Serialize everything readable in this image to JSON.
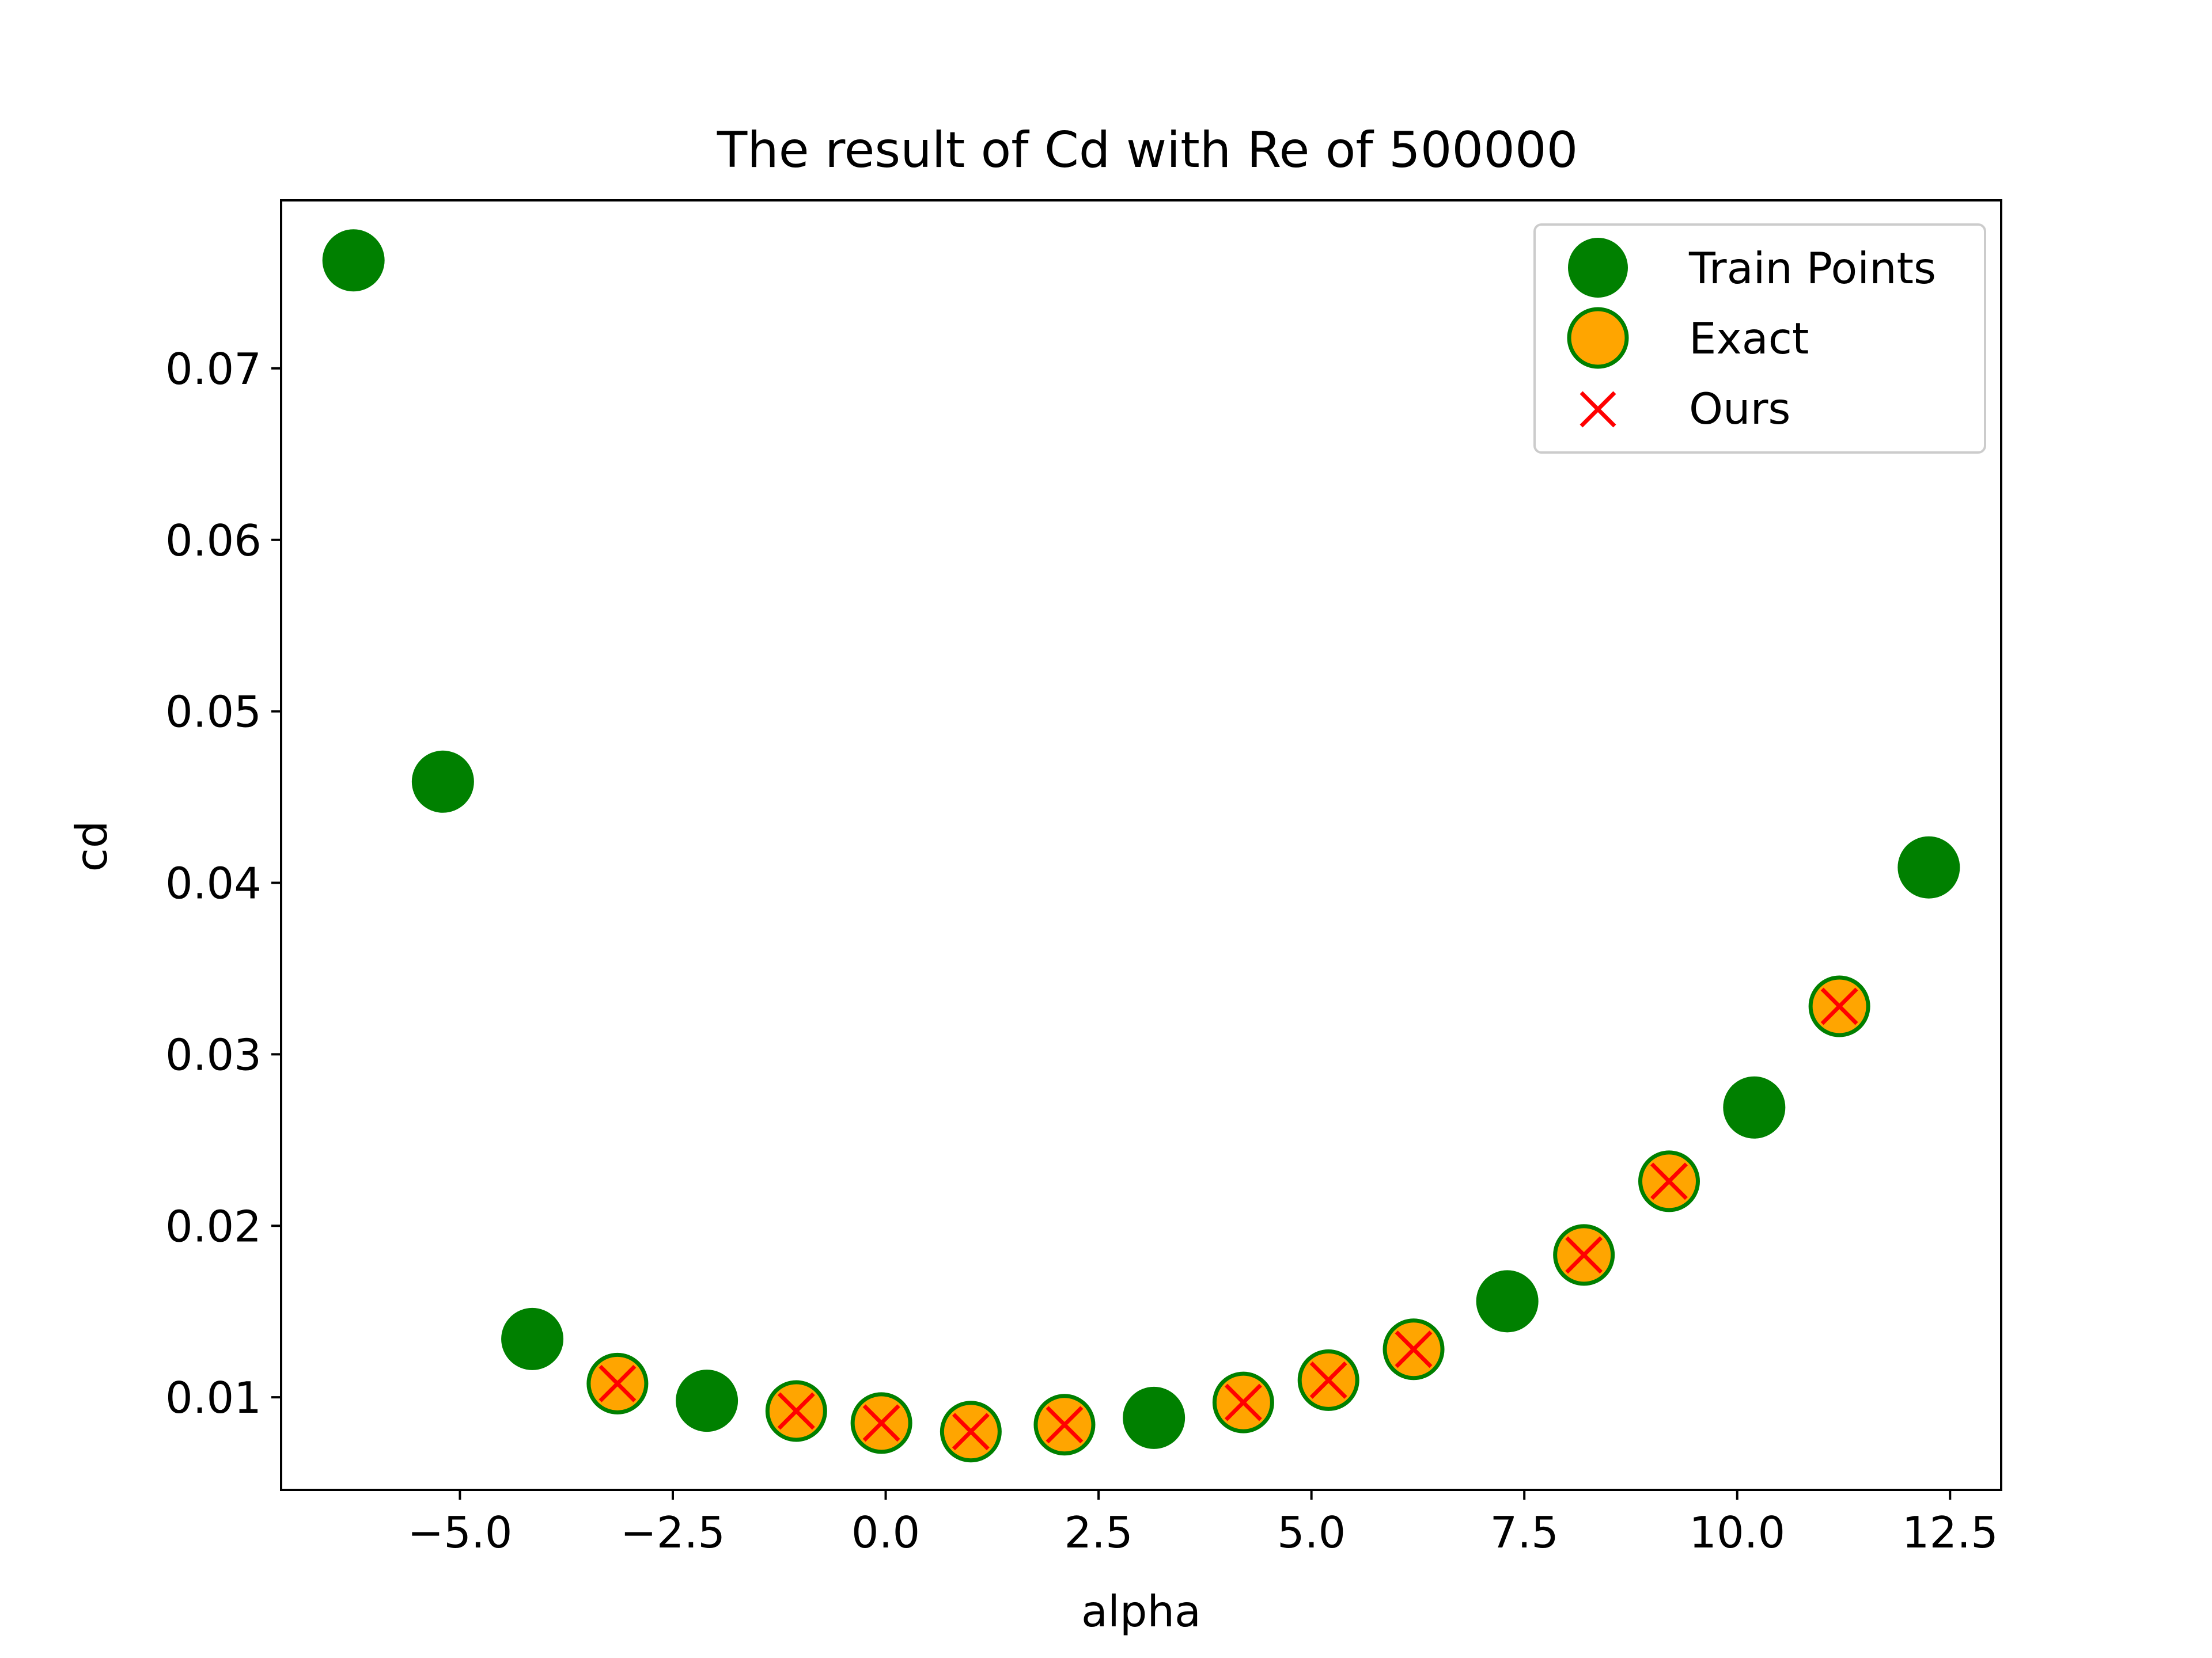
{
  "chart_data": {
    "type": "scatter",
    "title": "The result of Cd with Re of 500000",
    "xlabel": "alpha",
    "ylabel": "cd",
    "xlim": [
      -7.1,
      13.1
    ],
    "ylim": [
      0.0046,
      0.0798
    ],
    "xticks": [
      -5.0,
      -2.5,
      0.0,
      2.5,
      5.0,
      7.5,
      10.0,
      12.5
    ],
    "xtick_labels": [
      "−5.0",
      "−2.5",
      "0.0",
      "2.5",
      "5.0",
      "7.5",
      "10.0",
      "12.5"
    ],
    "yticks": [
      0.01,
      0.02,
      0.03,
      0.04,
      0.05,
      0.06,
      0.07
    ],
    "ytick_labels": [
      "0.01",
      "0.02",
      "0.03",
      "0.04",
      "0.05",
      "0.06",
      "0.07"
    ],
    "grid": false,
    "legend_position": "top-right",
    "series": [
      {
        "name": "Train Points",
        "marker": "circle",
        "color": "#008000",
        "x": [
          -6.25,
          -5.2,
          -4.15,
          -2.1,
          3.15,
          7.3,
          10.2,
          12.25
        ],
        "y": [
          0.0763,
          0.0459,
          0.0134,
          0.0098,
          0.0088,
          0.0156,
          0.0269,
          0.0409
        ]
      },
      {
        "name": "Exact",
        "marker": "circle",
        "color": "#ffa500",
        "edge_color": "#008000",
        "x": [
          -3.15,
          -1.05,
          -0.05,
          1.0,
          2.1,
          4.2,
          5.2,
          6.2,
          8.2,
          9.2,
          11.2
        ],
        "y": [
          0.0108,
          0.0092,
          0.0085,
          0.008,
          0.0084,
          0.0097,
          0.011,
          0.0128,
          0.0183,
          0.0226,
          0.0328
        ]
      },
      {
        "name": "Ours",
        "marker": "x",
        "color": "#ff0000",
        "x": [
          -3.15,
          -1.05,
          -0.05,
          1.0,
          2.1,
          4.2,
          5.2,
          6.2,
          8.2,
          9.2,
          11.2
        ],
        "y": [
          0.0108,
          0.0092,
          0.0085,
          0.008,
          0.0084,
          0.0097,
          0.011,
          0.0128,
          0.0183,
          0.0226,
          0.0328
        ]
      }
    ]
  }
}
